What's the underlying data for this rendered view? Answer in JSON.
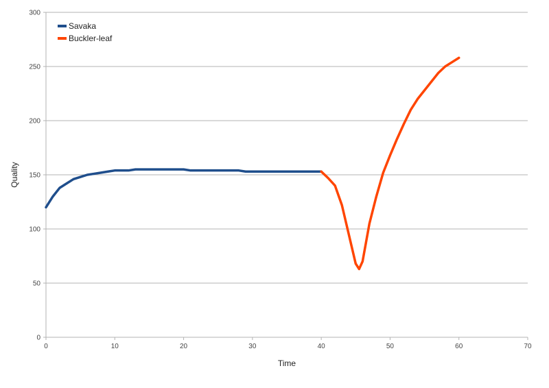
{
  "chart_data": {
    "type": "line",
    "xlabel": "Time",
    "ylabel": "Quality",
    "xlim": [
      0,
      70
    ],
    "ylim": [
      0,
      300
    ],
    "x_ticks": [
      0,
      10,
      20,
      30,
      40,
      50,
      60,
      70
    ],
    "y_ticks": [
      0,
      50,
      100,
      150,
      200,
      250,
      300
    ],
    "grid": "horizontal",
    "legend_position": "top-left",
    "series": [
      {
        "name": "Savaka",
        "color": "#1f4e8c",
        "points": [
          [
            0,
            120
          ],
          [
            1,
            130
          ],
          [
            2,
            138
          ],
          [
            3,
            142
          ],
          [
            4,
            146
          ],
          [
            5,
            148
          ],
          [
            6,
            150
          ],
          [
            7,
            151
          ],
          [
            8,
            152
          ],
          [
            9,
            153
          ],
          [
            10,
            154
          ],
          [
            11,
            154
          ],
          [
            12,
            154
          ],
          [
            13,
            155
          ],
          [
            14,
            155
          ],
          [
            15,
            155
          ],
          [
            16,
            155
          ],
          [
            17,
            155
          ],
          [
            18,
            155
          ],
          [
            19,
            155
          ],
          [
            20,
            155
          ],
          [
            21,
            154
          ],
          [
            22,
            154
          ],
          [
            24,
            154
          ],
          [
            26,
            154
          ],
          [
            28,
            154
          ],
          [
            29,
            153
          ],
          [
            30,
            153
          ],
          [
            32,
            153
          ],
          [
            34,
            153
          ],
          [
            36,
            153
          ],
          [
            38,
            153
          ],
          [
            40,
            153
          ]
        ]
      },
      {
        "name": "Buckler-leaf",
        "color": "#ff4500",
        "points": [
          [
            40,
            153
          ],
          [
            41,
            147
          ],
          [
            42,
            140
          ],
          [
            43,
            122
          ],
          [
            44,
            95
          ],
          [
            45,
            68
          ],
          [
            45.5,
            63
          ],
          [
            46,
            70
          ],
          [
            47,
            105
          ],
          [
            48,
            130
          ],
          [
            49,
            152
          ],
          [
            50,
            168
          ],
          [
            51,
            183
          ],
          [
            52,
            197
          ],
          [
            53,
            210
          ],
          [
            54,
            220
          ],
          [
            55,
            228
          ],
          [
            56,
            236
          ],
          [
            57,
            244
          ],
          [
            58,
            250
          ],
          [
            59,
            254
          ],
          [
            60,
            258
          ]
        ]
      }
    ]
  }
}
